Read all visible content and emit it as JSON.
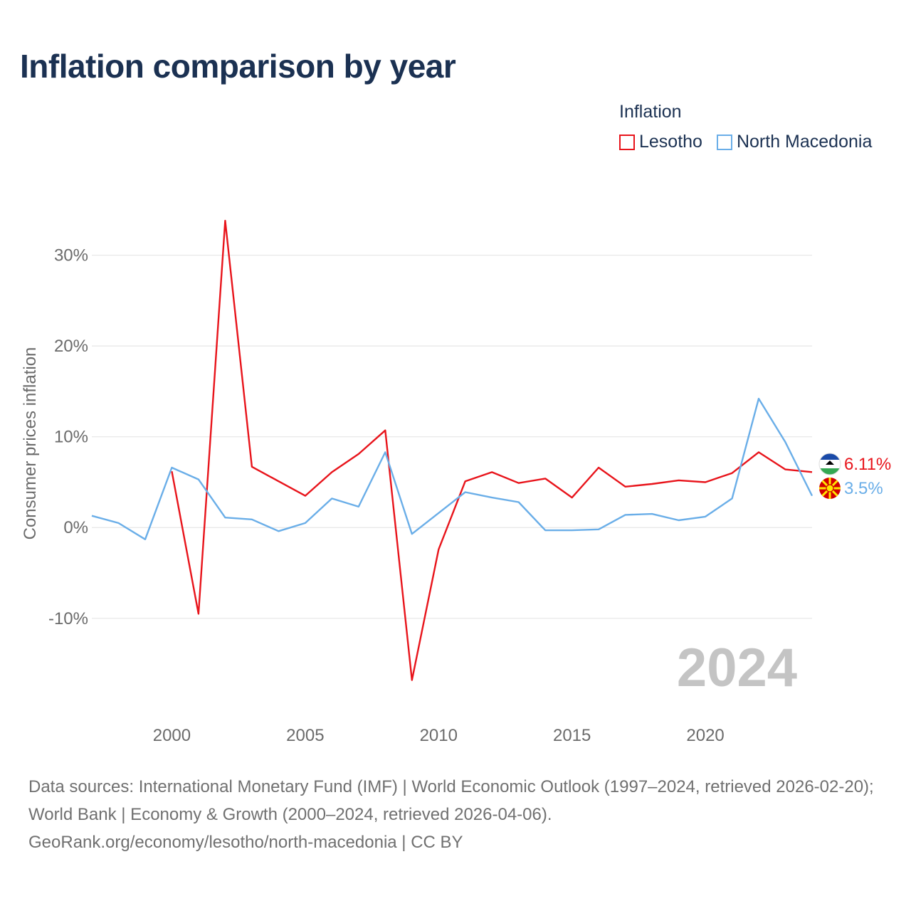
{
  "title": "Inflation comparison by year",
  "legend": {
    "title": "Inflation",
    "items": [
      {
        "label": "Lesotho",
        "color": "#e8141b"
      },
      {
        "label": "North Macedonia",
        "color": "#6aaee8"
      }
    ]
  },
  "chart_data": {
    "type": "line",
    "title": "Inflation comparison by year",
    "xlabel": "",
    "ylabel": "Consumer prices inflation",
    "xlim": [
      1997,
      2024
    ],
    "ylim": [
      -19.5,
      36
    ],
    "yticks": [
      -10,
      0,
      10,
      20,
      30
    ],
    "ytick_labels": [
      "-10%",
      "0%",
      "10%",
      "20%",
      "30%"
    ],
    "xticks": [
      2000,
      2005,
      2010,
      2015,
      2020
    ],
    "xtick_labels": [
      "2000",
      "2005",
      "2010",
      "2015",
      "2020"
    ],
    "grid": true,
    "watermark_year": "2024",
    "series": [
      {
        "name": "Lesotho",
        "color": "#e8141b",
        "end_label": "6.11%",
        "x": [
          2000,
          2001,
          2002,
          2003,
          2004,
          2005,
          2006,
          2007,
          2008,
          2009,
          2010,
          2011,
          2012,
          2013,
          2014,
          2015,
          2016,
          2017,
          2018,
          2019,
          2020,
          2021,
          2022,
          2023,
          2024
        ],
        "values": [
          6.2,
          -9.5,
          33.8,
          6.7,
          5.1,
          3.5,
          6.1,
          8.1,
          10.7,
          -16.8,
          -2.4,
          5.1,
          6.1,
          4.9,
          5.4,
          3.3,
          6.6,
          4.5,
          4.8,
          5.2,
          5.0,
          6.0,
          8.3,
          6.4,
          6.11
        ]
      },
      {
        "name": "North Macedonia",
        "color": "#6aaee8",
        "end_label": "3.5%",
        "x": [
          1997,
          1998,
          1999,
          2000,
          2001,
          2002,
          2003,
          2004,
          2005,
          2006,
          2007,
          2008,
          2009,
          2010,
          2011,
          2012,
          2013,
          2014,
          2015,
          2016,
          2017,
          2018,
          2019,
          2020,
          2021,
          2022,
          2023,
          2024
        ],
        "values": [
          1.3,
          0.5,
          -1.3,
          6.6,
          5.3,
          1.1,
          0.9,
          -0.4,
          0.5,
          3.2,
          2.3,
          8.3,
          -0.7,
          1.6,
          3.9,
          3.3,
          2.8,
          -0.3,
          -0.3,
          -0.2,
          1.4,
          1.5,
          0.8,
          1.2,
          3.2,
          14.2,
          9.4,
          3.5
        ]
      }
    ]
  },
  "footer": {
    "line1": "Data sources: International Monetary Fund (IMF) | World Economic Outlook (1997–2024, retrieved 2026-02-20); World Bank | Economy & Growth (2000–2024, retrieved 2026-04-06).",
    "line2": "GeoRank.org/economy/lesotho/north-macedonia | CC BY"
  }
}
